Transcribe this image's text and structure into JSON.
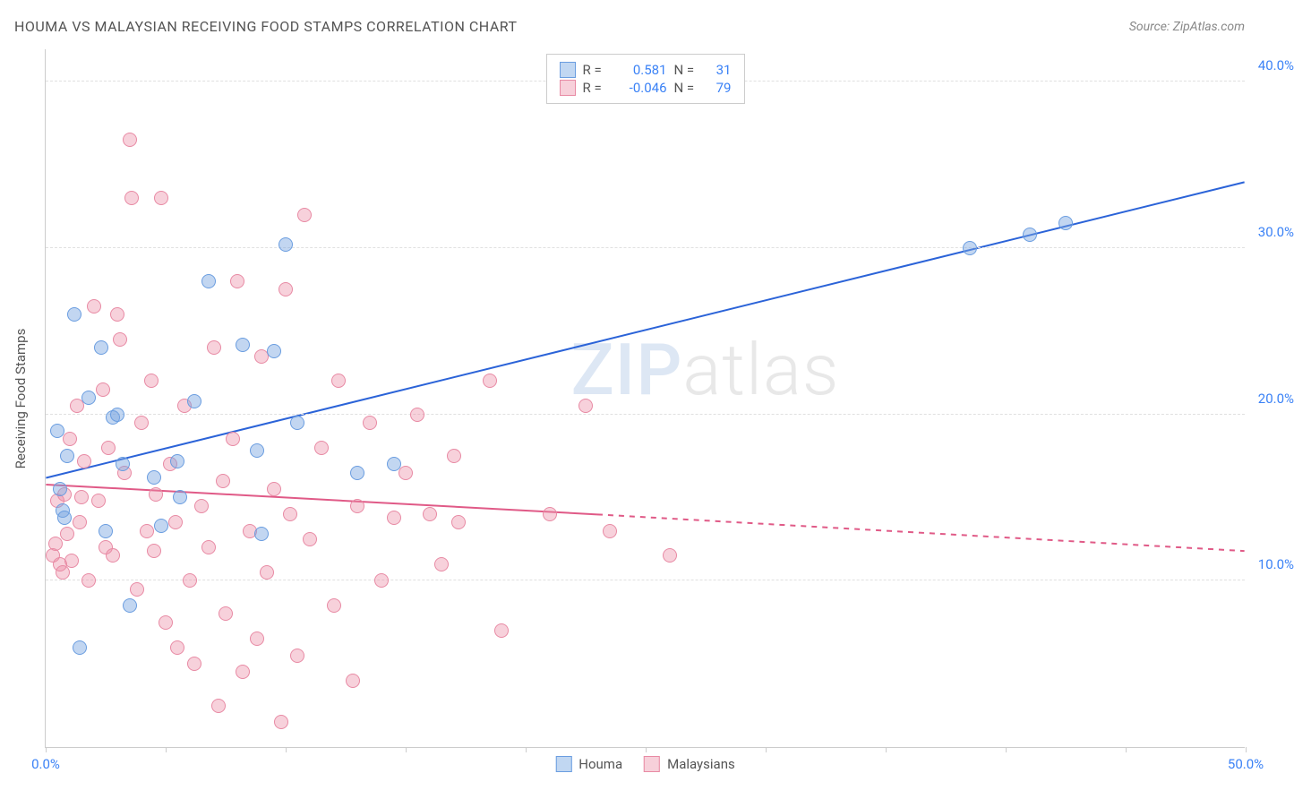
{
  "header": {
    "title": "HOUMA VS MALAYSIAN RECEIVING FOOD STAMPS CORRELATION CHART",
    "source": "Source: ZipAtlas.com"
  },
  "watermark": {
    "part1": "ZIP",
    "part2": "atlas"
  },
  "chart": {
    "type": "scatter",
    "background_color": "#ffffff",
    "grid_color": "#e0e0e0",
    "axis_color": "#cccccc",
    "ylabel": "Receiving Food Stamps",
    "label_fontsize": 15,
    "xlim": [
      0,
      50
    ],
    "ylim": [
      0,
      42
    ],
    "x_ticks": [
      0,
      5,
      10,
      15,
      20,
      25,
      30,
      35,
      40,
      45,
      50
    ],
    "x_tick_labels": {
      "0": "0.0%",
      "50": "50.0%"
    },
    "y_grid": [
      10,
      20,
      30,
      40
    ],
    "y_tick_labels": {
      "10": "10.0%",
      "20": "20.0%",
      "30": "30.0%",
      "40": "40.0%"
    },
    "marker_radius": 8,
    "marker_border_width": 1.5,
    "series": [
      {
        "name": "Houma",
        "fill_color": "rgba(120,165,225,0.45)",
        "stroke_color": "#6a9de0",
        "swatch_fill": "#c1d7f2",
        "swatch_border": "#6a9de0",
        "R": "0.581",
        "N": "31",
        "trend": {
          "color": "#2b63d8",
          "width": 2,
          "solid": {
            "x1": 0,
            "y1": 16.2,
            "x2": 50,
            "y2": 34.0
          },
          "dashed": null
        },
        "points": [
          [
            0.5,
            19.0
          ],
          [
            0.6,
            15.5
          ],
          [
            0.7,
            14.2
          ],
          [
            0.8,
            13.8
          ],
          [
            0.9,
            17.5
          ],
          [
            1.2,
            26.0
          ],
          [
            1.4,
            6.0
          ],
          [
            1.8,
            21.0
          ],
          [
            2.3,
            24.0
          ],
          [
            2.8,
            19.8
          ],
          [
            2.5,
            13.0
          ],
          [
            3.0,
            20.0
          ],
          [
            3.2,
            17.0
          ],
          [
            3.5,
            8.5
          ],
          [
            4.5,
            16.2
          ],
          [
            4.8,
            13.3
          ],
          [
            5.5,
            17.2
          ],
          [
            5.6,
            15.0
          ],
          [
            6.2,
            20.8
          ],
          [
            6.8,
            28.0
          ],
          [
            8.2,
            24.2
          ],
          [
            8.8,
            17.8
          ],
          [
            9.0,
            12.8
          ],
          [
            9.5,
            23.8
          ],
          [
            10.0,
            30.2
          ],
          [
            10.5,
            19.5
          ],
          [
            13.0,
            16.5
          ],
          [
            14.5,
            17.0
          ],
          [
            38.5,
            30.0
          ],
          [
            42.5,
            31.5
          ],
          [
            41.0,
            30.8
          ]
        ]
      },
      {
        "name": "Malaysians",
        "fill_color": "rgba(235,140,165,0.40)",
        "stroke_color": "#e88aa4",
        "swatch_fill": "#f7d0da",
        "swatch_border": "#e88aa4",
        "R": "-0.046",
        "N": "79",
        "trend": {
          "color": "#e05a87",
          "width": 2,
          "solid": {
            "x1": 0,
            "y1": 15.8,
            "x2": 23,
            "y2": 14.0
          },
          "dashed": {
            "x1": 23,
            "y1": 14.0,
            "x2": 50,
            "y2": 11.8
          }
        },
        "points": [
          [
            0.3,
            11.5
          ],
          [
            0.4,
            12.2
          ],
          [
            0.5,
            14.8
          ],
          [
            0.6,
            11.0
          ],
          [
            0.7,
            10.5
          ],
          [
            0.8,
            15.2
          ],
          [
            0.9,
            12.8
          ],
          [
            1.0,
            18.5
          ],
          [
            1.1,
            11.2
          ],
          [
            1.3,
            20.5
          ],
          [
            1.4,
            13.5
          ],
          [
            1.5,
            15.0
          ],
          [
            1.6,
            17.2
          ],
          [
            1.8,
            10.0
          ],
          [
            2.0,
            26.5
          ],
          [
            2.2,
            14.8
          ],
          [
            2.4,
            21.5
          ],
          [
            2.5,
            12.0
          ],
          [
            2.6,
            18.0
          ],
          [
            2.8,
            11.5
          ],
          [
            3.0,
            26.0
          ],
          [
            3.1,
            24.5
          ],
          [
            3.3,
            16.5
          ],
          [
            3.5,
            36.5
          ],
          [
            3.6,
            33.0
          ],
          [
            3.8,
            9.5
          ],
          [
            4.0,
            19.5
          ],
          [
            4.2,
            13.0
          ],
          [
            4.4,
            22.0
          ],
          [
            4.5,
            11.8
          ],
          [
            4.6,
            15.2
          ],
          [
            4.8,
            33.0
          ],
          [
            5.0,
            7.5
          ],
          [
            5.2,
            17.0
          ],
          [
            5.4,
            13.5
          ],
          [
            5.5,
            6.0
          ],
          [
            5.8,
            20.5
          ],
          [
            6.0,
            10.0
          ],
          [
            6.2,
            5.0
          ],
          [
            6.5,
            14.5
          ],
          [
            6.8,
            12.0
          ],
          [
            7.0,
            24.0
          ],
          [
            7.2,
            2.5
          ],
          [
            7.4,
            16.0
          ],
          [
            7.5,
            8.0
          ],
          [
            7.8,
            18.5
          ],
          [
            8.0,
            28.0
          ],
          [
            8.2,
            4.5
          ],
          [
            8.5,
            13.0
          ],
          [
            8.8,
            6.5
          ],
          [
            9.0,
            23.5
          ],
          [
            9.2,
            10.5
          ],
          [
            9.5,
            15.5
          ],
          [
            9.8,
            1.5
          ],
          [
            10.0,
            27.5
          ],
          [
            10.2,
            14.0
          ],
          [
            10.5,
            5.5
          ],
          [
            10.8,
            32.0
          ],
          [
            11.0,
            12.5
          ],
          [
            11.5,
            18.0
          ],
          [
            12.0,
            8.5
          ],
          [
            12.2,
            22.0
          ],
          [
            12.8,
            4.0
          ],
          [
            13.0,
            14.5
          ],
          [
            13.5,
            19.5
          ],
          [
            14.0,
            10.0
          ],
          [
            14.5,
            13.8
          ],
          [
            15.0,
            16.5
          ],
          [
            15.5,
            20.0
          ],
          [
            16.0,
            14.0
          ],
          [
            16.5,
            11.0
          ],
          [
            17.0,
            17.5
          ],
          [
            17.2,
            13.5
          ],
          [
            18.5,
            22.0
          ],
          [
            19.0,
            7.0
          ],
          [
            21.0,
            14.0
          ],
          [
            22.5,
            20.5
          ],
          [
            23.5,
            13.0
          ],
          [
            26.0,
            11.5
          ]
        ]
      }
    ],
    "legend_bottom": [
      {
        "label": "Houma",
        "swatch_fill": "#c1d7f2",
        "swatch_border": "#6a9de0"
      },
      {
        "label": "Malaysians",
        "swatch_fill": "#f7d0da",
        "swatch_border": "#e88aa4"
      }
    ]
  }
}
